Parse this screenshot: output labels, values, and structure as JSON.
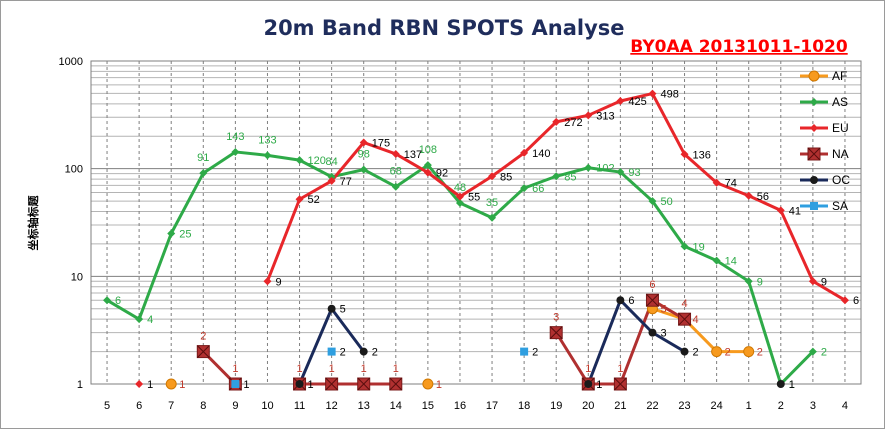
{
  "chart_data": {
    "type": "line",
    "title": "20m Band RBN SPOTS Analyse",
    "subtitle": "BY0AA 20131011-1020",
    "ylabel": "坐标轴标题",
    "yscale": "log",
    "ylim": [
      1,
      1000
    ],
    "yticks": [
      "1",
      "10",
      "100",
      "1000"
    ],
    "grid": true,
    "legend_position": "right",
    "categories": [
      "5",
      "6",
      "7",
      "8",
      "9",
      "10",
      "11",
      "12",
      "13",
      "14",
      "15",
      "16",
      "17",
      "18",
      "19",
      "20",
      "21",
      "22",
      "23",
      "24",
      "1",
      "2",
      "3",
      "4"
    ],
    "series": [
      {
        "name": "AF",
        "color": "#f79a1e",
        "marker": "circle",
        "values": [
          null,
          null,
          1,
          null,
          null,
          null,
          null,
          null,
          null,
          null,
          1,
          null,
          null,
          null,
          null,
          null,
          null,
          5,
          4,
          2,
          2,
          null,
          null,
          null
        ]
      },
      {
        "name": "AS",
        "color": "#2eaa48",
        "marker": "diamond",
        "values": [
          6,
          4,
          25,
          91,
          143,
          133,
          120,
          84,
          98,
          68,
          108,
          48,
          35,
          66,
          85,
          102,
          93,
          50,
          19,
          14,
          9,
          1,
          2,
          null
        ]
      },
      {
        "name": "EU",
        "color": "#e8262a",
        "marker": "diamond",
        "values": [
          null,
          1,
          null,
          null,
          null,
          9,
          52,
          77,
          175,
          137,
          92,
          55,
          85,
          140,
          272,
          313,
          425,
          498,
          136,
          74,
          56,
          41,
          9,
          6
        ]
      },
      {
        "name": "NA",
        "color": "#b03030",
        "marker": "square-x",
        "values": [
          null,
          null,
          null,
          2,
          1,
          null,
          1,
          1,
          1,
          1,
          null,
          null,
          null,
          null,
          3,
          1,
          1,
          6,
          4,
          null,
          null,
          null,
          null,
          null
        ]
      },
      {
        "name": "OC",
        "color": "#1a2a5a",
        "marker": "circle",
        "values": [
          null,
          null,
          null,
          null,
          null,
          null,
          1,
          5,
          2,
          null,
          null,
          null,
          null,
          null,
          null,
          1,
          6,
          3,
          2,
          null,
          null,
          1,
          null,
          null
        ]
      },
      {
        "name": "SA",
        "color": "#2f9fe0",
        "marker": "square",
        "values": [
          null,
          null,
          null,
          null,
          1,
          null,
          null,
          2,
          null,
          null,
          null,
          null,
          null,
          2,
          null,
          null,
          null,
          null,
          null,
          null,
          null,
          null,
          null,
          null
        ]
      }
    ]
  }
}
